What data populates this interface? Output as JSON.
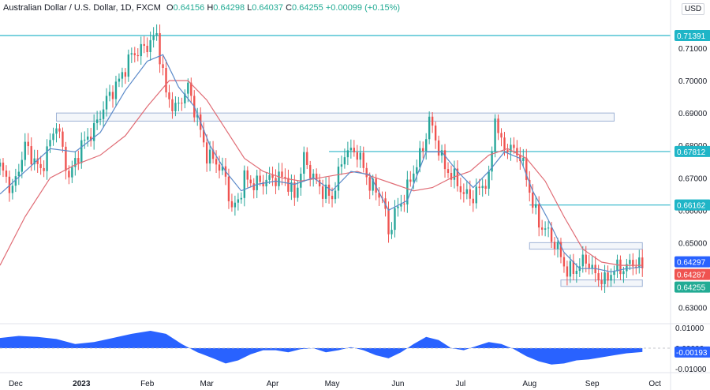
{
  "header": {
    "symbol": "Australian Dollar / U.S. Dollar, 1D, FXCM",
    "o_label": "O",
    "o_value": "0.64156",
    "h_label": "H",
    "h_value": "0.64298",
    "l_label": "L",
    "l_value": "0.64037",
    "c_label": "C",
    "c_value": "0.64255",
    "change": "+0.00099 (+0.15%)"
  },
  "currency": "USD",
  "colors": {
    "up": "#26a69a",
    "down": "#ef5350",
    "ma_fast": "#5b8ac9",
    "ma_slow": "#e06c75",
    "level_line": "#2fb6c9",
    "box": "#9fb3d6",
    "oscillator": "#2962ff",
    "tag_cyan": "#1fb5c7",
    "tag_blue": "#2962ff",
    "tag_red": "#ef5350",
    "tag_green": "#22ab94"
  },
  "chart_data": {
    "type": "candlestick",
    "title": "Australian Dollar / U.S. Dollar, 1D, FXCM",
    "y_axis": {
      "min": 0.625,
      "max": 0.72,
      "ticks": [
        "0.71000",
        "0.70000",
        "0.69000",
        "0.68000",
        "0.67000",
        "0.66000",
        "0.65000",
        "0.64000",
        "0.63000"
      ],
      "tick_values": [
        0.71,
        0.7,
        0.69,
        0.68,
        0.67,
        0.66,
        0.65,
        0.64,
        0.63
      ]
    },
    "x_axis": {
      "labels": [
        "Dec",
        "2023",
        "Feb",
        "Mar",
        "Apr",
        "May",
        "Jun",
        "Jul",
        "Aug",
        "Sep",
        "Oct"
      ],
      "label_days": [
        5,
        26,
        47,
        66,
        87,
        106,
        127,
        147,
        169,
        189,
        209
      ],
      "max_day": 214
    },
    "price_path": [
      [
        0,
        0.6735
      ],
      [
        4,
        0.666
      ],
      [
        8,
        0.68
      ],
      [
        13,
        0.672
      ],
      [
        18,
        0.687
      ],
      [
        22,
        0.67
      ],
      [
        26,
        0.68
      ],
      [
        30,
        0.685
      ],
      [
        34,
        0.694
      ],
      [
        38,
        0.7
      ],
      [
        42,
        0.708
      ],
      [
        46,
        0.71
      ],
      [
        50,
        0.7139
      ],
      [
        53,
        0.696
      ],
      [
        56,
        0.691
      ],
      [
        60,
        0.698
      ],
      [
        63,
        0.688
      ],
      [
        66,
        0.677
      ],
      [
        69,
        0.675
      ],
      [
        72,
        0.67
      ],
      [
        74,
        0.66
      ],
      [
        76,
        0.663
      ],
      [
        78,
        0.67
      ],
      [
        81,
        0.668
      ],
      [
        84,
        0.669
      ],
      [
        88,
        0.67
      ],
      [
        91,
        0.67
      ],
      [
        94,
        0.664
      ],
      [
        97,
        0.676
      ],
      [
        100,
        0.67
      ],
      [
        103,
        0.666
      ],
      [
        106,
        0.664
      ],
      [
        110,
        0.678
      ],
      [
        114,
        0.678
      ],
      [
        118,
        0.668
      ],
      [
        122,
        0.664
      ],
      [
        124,
        0.653
      ],
      [
        126,
        0.659
      ],
      [
        129,
        0.664
      ],
      [
        132,
        0.672
      ],
      [
        135,
        0.679
      ],
      [
        137,
        0.688
      ],
      [
        139,
        0.682
      ],
      [
        142,
        0.673
      ],
      [
        145,
        0.67
      ],
      [
        148,
        0.665
      ],
      [
        151,
        0.664
      ],
      [
        154,
        0.668
      ],
      [
        156,
        0.669
      ],
      [
        158,
        0.689
      ],
      [
        160,
        0.68
      ],
      [
        163,
        0.679
      ],
      [
        166,
        0.677
      ],
      [
        168,
        0.67
      ],
      [
        170,
        0.662
      ],
      [
        172,
        0.656
      ],
      [
        175,
        0.653
      ],
      [
        178,
        0.648
      ],
      [
        181,
        0.641
      ],
      [
        184,
        0.642
      ],
      [
        187,
        0.645
      ],
      [
        190,
        0.64
      ],
      [
        193,
        0.638
      ],
      [
        196,
        0.642
      ],
      [
        199,
        0.642
      ],
      [
        202,
        0.644
      ],
      [
        205,
        0.6426
      ]
    ],
    "ma_fast": [
      [
        0,
        0.665
      ],
      [
        8,
        0.672
      ],
      [
        16,
        0.679
      ],
      [
        24,
        0.678
      ],
      [
        32,
        0.684
      ],
      [
        40,
        0.697
      ],
      [
        47,
        0.706
      ],
      [
        52,
        0.708
      ],
      [
        57,
        0.698
      ],
      [
        62,
        0.692
      ],
      [
        67,
        0.68
      ],
      [
        72,
        0.672
      ],
      [
        77,
        0.666
      ],
      [
        82,
        0.668
      ],
      [
        88,
        0.669
      ],
      [
        94,
        0.668
      ],
      [
        100,
        0.67
      ],
      [
        106,
        0.666
      ],
      [
        112,
        0.672
      ],
      [
        118,
        0.671
      ],
      [
        124,
        0.66
      ],
      [
        130,
        0.663
      ],
      [
        136,
        0.678
      ],
      [
        141,
        0.678
      ],
      [
        146,
        0.672
      ],
      [
        151,
        0.667
      ],
      [
        156,
        0.672
      ],
      [
        161,
        0.678
      ],
      [
        166,
        0.676
      ],
      [
        170,
        0.666
      ],
      [
        175,
        0.657
      ],
      [
        180,
        0.647
      ],
      [
        185,
        0.642
      ],
      [
        190,
        0.642
      ],
      [
        195,
        0.641
      ],
      [
        200,
        0.642
      ],
      [
        205,
        0.6425
      ]
    ],
    "ma_slow": [
      [
        0,
        0.643
      ],
      [
        8,
        0.658
      ],
      [
        16,
        0.67
      ],
      [
        24,
        0.674
      ],
      [
        32,
        0.677
      ],
      [
        40,
        0.683
      ],
      [
        47,
        0.692
      ],
      [
        54,
        0.7
      ],
      [
        60,
        0.7
      ],
      [
        66,
        0.694
      ],
      [
        72,
        0.685
      ],
      [
        78,
        0.676
      ],
      [
        84,
        0.672
      ],
      [
        90,
        0.67
      ],
      [
        96,
        0.669
      ],
      [
        102,
        0.67
      ],
      [
        108,
        0.671
      ],
      [
        114,
        0.672
      ],
      [
        120,
        0.67
      ],
      [
        126,
        0.668
      ],
      [
        132,
        0.666
      ],
      [
        138,
        0.667
      ],
      [
        144,
        0.67
      ],
      [
        150,
        0.672
      ],
      [
        156,
        0.677
      ],
      [
        162,
        0.679
      ],
      [
        168,
        0.676
      ],
      [
        174,
        0.669
      ],
      [
        180,
        0.658
      ],
      [
        186,
        0.648
      ],
      [
        192,
        0.644
      ],
      [
        198,
        0.643
      ],
      [
        205,
        0.643
      ]
    ],
    "horizontal_levels": [
      {
        "value": 0.71391,
        "label": "0.71391",
        "from_day": 0
      },
      {
        "value": 0.67812,
        "label": "0.67812",
        "from_day": 105
      },
      {
        "value": 0.66162,
        "label": "0.66162",
        "from_day": 169
      }
    ],
    "zones": [
      {
        "from_day": 18,
        "to_day": 196,
        "low": 0.6875,
        "high": 0.69
      },
      {
        "from_day": 169,
        "to_day": 205,
        "low": 0.648,
        "high": 0.65
      },
      {
        "from_day": 179,
        "to_day": 205,
        "low": 0.6365,
        "high": 0.6385
      }
    ],
    "price_tags": [
      {
        "value": 0.64297,
        "label": "0.64297",
        "color": "#2962ff"
      },
      {
        "value": 0.64287,
        "label": "0.64287",
        "color": "#ef5350"
      },
      {
        "value": 0.64255,
        "label": "0.64255",
        "color": "#22ab94"
      }
    ],
    "oscillator": {
      "y_ticks": [
        "0.01000",
        "0.00000",
        "-0.01000"
      ],
      "tick_values": [
        0.01,
        0.0,
        -0.01
      ],
      "min": -0.012,
      "max": 0.012,
      "last_label": "-0.00193",
      "points": [
        [
          0,
          0.005
        ],
        [
          6,
          0.006
        ],
        [
          12,
          0.0055
        ],
        [
          18,
          0.0045
        ],
        [
          24,
          0.002
        ],
        [
          30,
          0.003
        ],
        [
          36,
          0.005
        ],
        [
          42,
          0.007
        ],
        [
          48,
          0.0085
        ],
        [
          53,
          0.007
        ],
        [
          58,
          0.002
        ],
        [
          63,
          -0.002
        ],
        [
          68,
          -0.005
        ],
        [
          72,
          -0.0075
        ],
        [
          76,
          -0.006
        ],
        [
          80,
          -0.003
        ],
        [
          84,
          -0.001
        ],
        [
          88,
          -0.001
        ],
        [
          92,
          -0.002
        ],
        [
          96,
          -0.0005
        ],
        [
          100,
          0.0
        ],
        [
          104,
          -0.002
        ],
        [
          108,
          -0.001
        ],
        [
          112,
          0.0005
        ],
        [
          116,
          -0.001
        ],
        [
          120,
          -0.0035
        ],
        [
          124,
          -0.005
        ],
        [
          128,
          -0.002
        ],
        [
          132,
          0.002
        ],
        [
          136,
          0.0055
        ],
        [
          140,
          0.004
        ],
        [
          144,
          0.0
        ],
        [
          148,
          -0.001
        ],
        [
          152,
          0.001
        ],
        [
          156,
          0.003
        ],
        [
          160,
          0.002
        ],
        [
          164,
          -0.0005
        ],
        [
          168,
          -0.004
        ],
        [
          172,
          -0.0065
        ],
        [
          176,
          -0.008
        ],
        [
          180,
          -0.0075
        ],
        [
          184,
          -0.006
        ],
        [
          188,
          -0.0055
        ],
        [
          192,
          -0.0045
        ],
        [
          196,
          -0.0035
        ],
        [
          200,
          -0.0025
        ],
        [
          205,
          -0.0019
        ]
      ]
    }
  }
}
